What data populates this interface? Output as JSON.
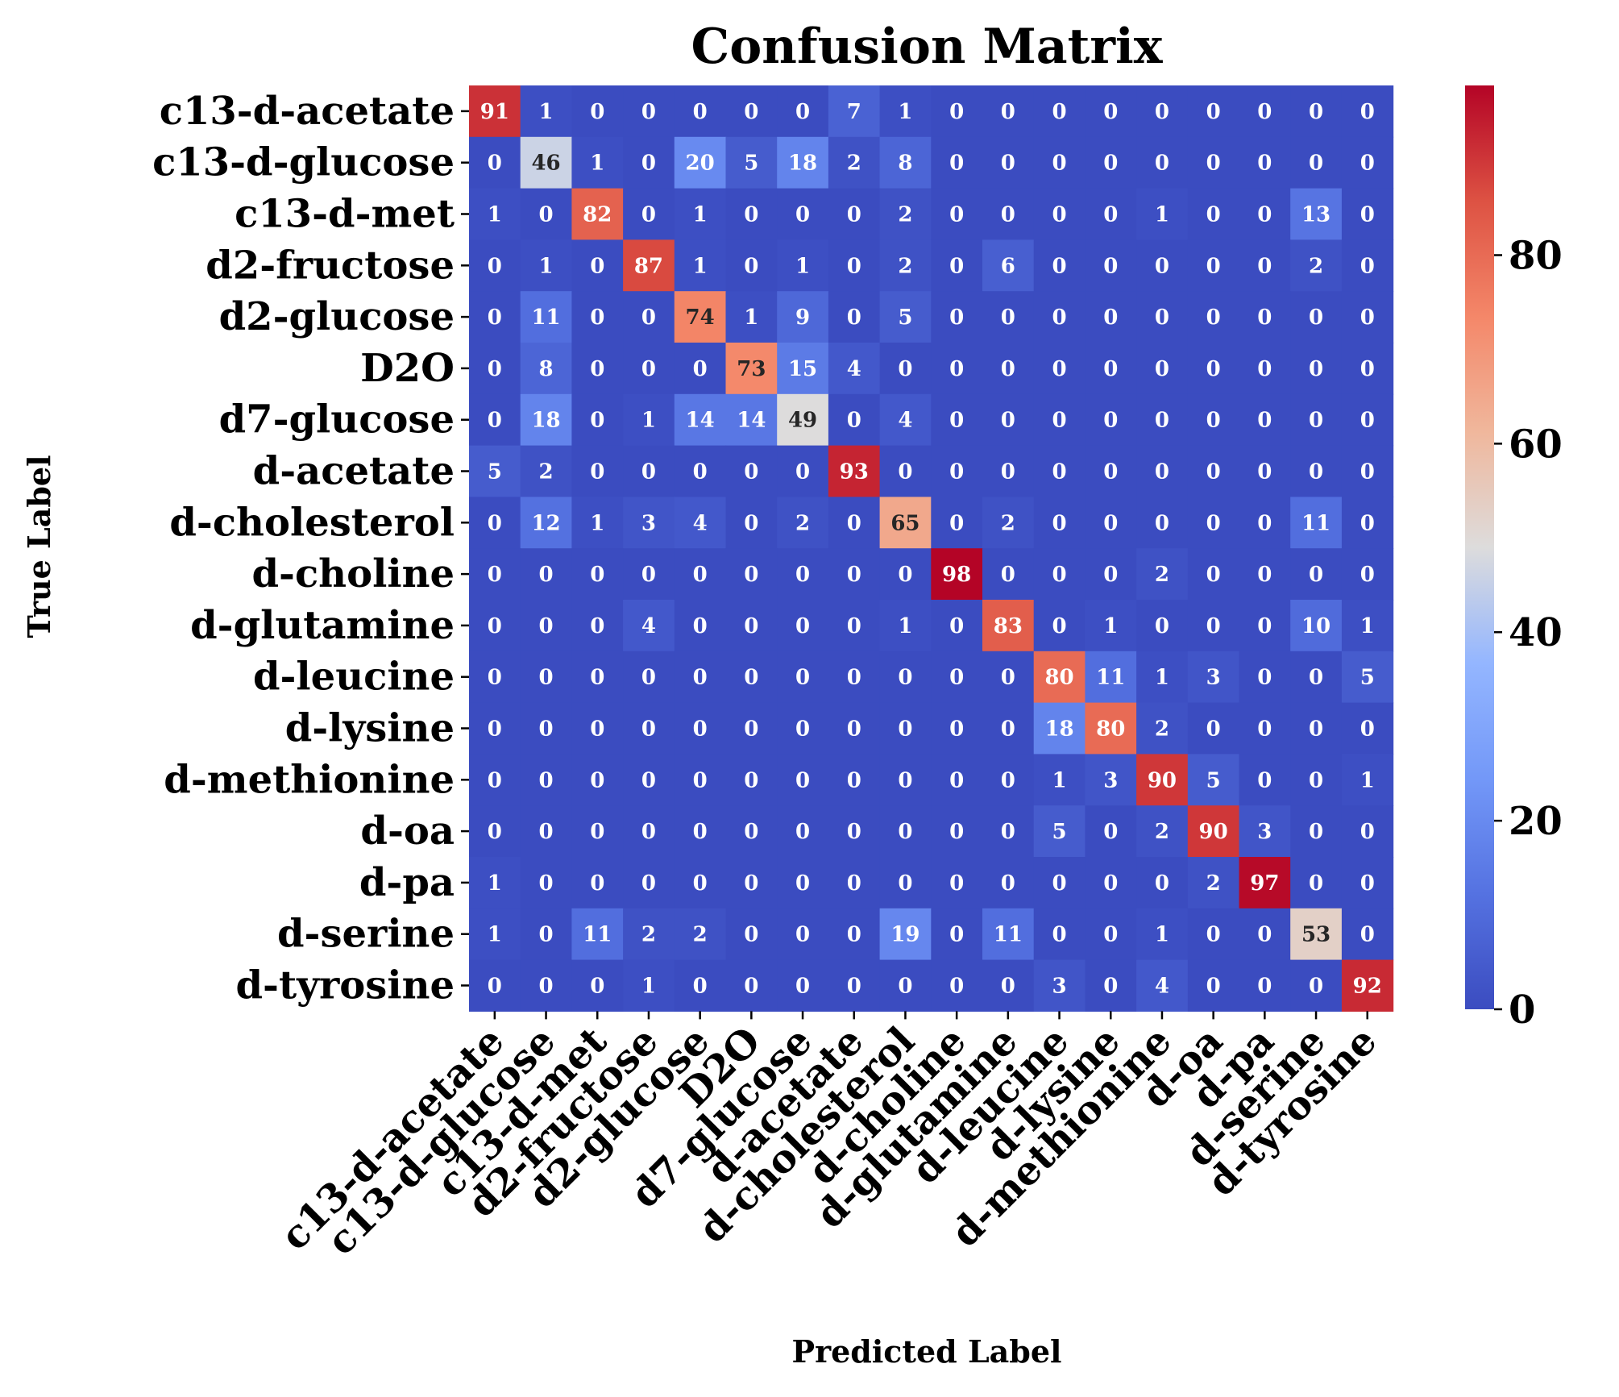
{
  "chart_data": {
    "type": "heatmap",
    "title": "Confusion Matrix",
    "xlabel": "Predicted Label",
    "ylabel": "True Label",
    "labels": [
      "c13-d-acetate",
      "c13-d-glucose",
      "c13-d-met",
      "d2-fructose",
      "d2-glucose",
      "D2O",
      "d7-glucose",
      "d-acetate",
      "d-cholesterol",
      "d-choline",
      "d-glutamine",
      "d-leucine",
      "d-lysine",
      "d-methionine",
      "d-oa",
      "d-pa",
      "d-serine",
      "d-tyrosine"
    ],
    "matrix": [
      [
        91,
        1,
        0,
        0,
        0,
        0,
        0,
        7,
        1,
        0,
        0,
        0,
        0,
        0,
        0,
        0,
        0,
        0
      ],
      [
        0,
        46,
        1,
        0,
        20,
        5,
        18,
        2,
        8,
        0,
        0,
        0,
        0,
        0,
        0,
        0,
        0,
        0
      ],
      [
        1,
        0,
        82,
        0,
        1,
        0,
        0,
        0,
        2,
        0,
        0,
        0,
        0,
        1,
        0,
        0,
        13,
        0
      ],
      [
        0,
        1,
        0,
        87,
        1,
        0,
        1,
        0,
        2,
        0,
        6,
        0,
        0,
        0,
        0,
        0,
        2,
        0
      ],
      [
        0,
        11,
        0,
        0,
        74,
        1,
        9,
        0,
        5,
        0,
        0,
        0,
        0,
        0,
        0,
        0,
        0,
        0
      ],
      [
        0,
        8,
        0,
        0,
        0,
        73,
        15,
        4,
        0,
        0,
        0,
        0,
        0,
        0,
        0,
        0,
        0,
        0
      ],
      [
        0,
        18,
        0,
        1,
        14,
        14,
        49,
        0,
        4,
        0,
        0,
        0,
        0,
        0,
        0,
        0,
        0,
        0
      ],
      [
        5,
        2,
        0,
        0,
        0,
        0,
        0,
        93,
        0,
        0,
        0,
        0,
        0,
        0,
        0,
        0,
        0,
        0
      ],
      [
        0,
        12,
        1,
        3,
        4,
        0,
        2,
        0,
        65,
        0,
        2,
        0,
        0,
        0,
        0,
        0,
        11,
        0
      ],
      [
        0,
        0,
        0,
        0,
        0,
        0,
        0,
        0,
        0,
        98,
        0,
        0,
        0,
        2,
        0,
        0,
        0,
        0
      ],
      [
        0,
        0,
        0,
        4,
        0,
        0,
        0,
        0,
        1,
        0,
        83,
        0,
        1,
        0,
        0,
        0,
        10,
        1
      ],
      [
        0,
        0,
        0,
        0,
        0,
        0,
        0,
        0,
        0,
        0,
        0,
        80,
        11,
        1,
        3,
        0,
        0,
        5
      ],
      [
        0,
        0,
        0,
        0,
        0,
        0,
        0,
        0,
        0,
        0,
        0,
        18,
        80,
        2,
        0,
        0,
        0,
        0
      ],
      [
        0,
        0,
        0,
        0,
        0,
        0,
        0,
        0,
        0,
        0,
        0,
        1,
        3,
        90,
        5,
        0,
        0,
        1
      ],
      [
        0,
        0,
        0,
        0,
        0,
        0,
        0,
        0,
        0,
        0,
        0,
        5,
        0,
        2,
        90,
        3,
        0,
        0
      ],
      [
        1,
        0,
        0,
        0,
        0,
        0,
        0,
        0,
        0,
        0,
        0,
        0,
        0,
        0,
        2,
        97,
        0,
        0
      ],
      [
        1,
        0,
        11,
        2,
        2,
        0,
        0,
        0,
        19,
        0,
        11,
        0,
        0,
        1,
        0,
        0,
        53,
        0
      ],
      [
        0,
        0,
        0,
        1,
        0,
        0,
        0,
        0,
        0,
        0,
        0,
        3,
        0,
        4,
        0,
        0,
        0,
        92
      ]
    ],
    "colormap": "coolwarm",
    "vmin": 0,
    "vmax": 98,
    "colorbar_ticks": [
      0,
      20,
      40,
      60,
      80
    ],
    "grid": false
  }
}
